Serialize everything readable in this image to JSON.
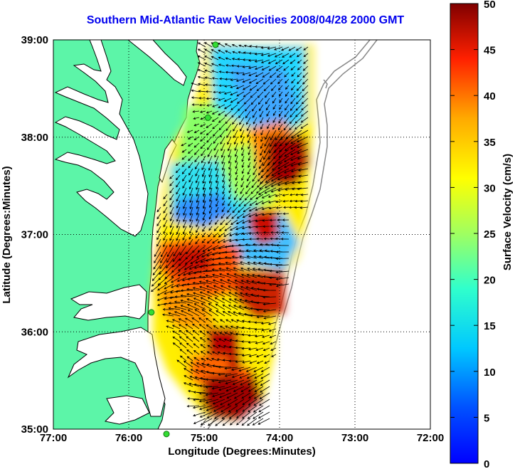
{
  "title": "Southern Mid-Atlantic Raw Velocities 2008/04/28 2000 GMT",
  "x_axis": {
    "label": "Longitude (Degrees:Minutes)",
    "ticks": [
      "77:00",
      "76:00",
      "75:00",
      "74:00",
      "73:00",
      "72:00"
    ]
  },
  "y_axis": {
    "label": "Latitude (Degrees:Minutes)",
    "ticks": [
      "39:00",
      "38:00",
      "37:00",
      "36:00",
      "35:00"
    ]
  },
  "colorbar": {
    "label": "Surface Velocity (cm/s)",
    "ticks": [
      "50",
      "45",
      "40",
      "35",
      "30",
      "25",
      "20",
      "15",
      "10",
      "5",
      "0"
    ],
    "min": 0,
    "max": 50,
    "colormap": "jet"
  },
  "colors": {
    "land": "#5cf5a8",
    "coastline": "#000000",
    "bathymetry": "#888888",
    "station_marker": "#33dd33",
    "title": "#0000ee"
  },
  "map_extent": {
    "lon_min": -77,
    "lon_max": -72,
    "lat_min": 35,
    "lat_max": 39
  },
  "grid": true,
  "stations": [
    {
      "lon": -74.85,
      "lat": 38.95
    },
    {
      "lon": -74.95,
      "lat": 38.2
    },
    {
      "lon": -75.7,
      "lat": 36.2
    },
    {
      "lon": -75.5,
      "lat": 34.95
    }
  ]
}
